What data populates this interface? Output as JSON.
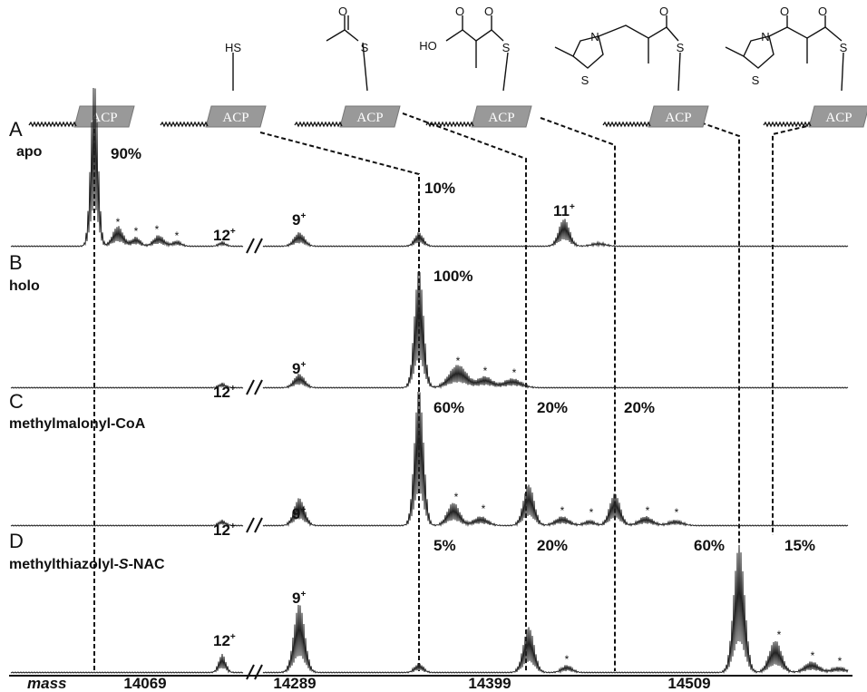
{
  "structures": [
    {
      "label": "ACP",
      "atoms": []
    },
    {
      "label": "ACP",
      "atoms": [
        "HS"
      ]
    },
    {
      "label": "ACP",
      "atoms": [
        "O",
        "S"
      ]
    },
    {
      "label": "ACP",
      "atoms": [
        "HO",
        "O",
        "O",
        "S"
      ]
    },
    {
      "label": "ACP",
      "atoms": [
        "N",
        "S",
        "O",
        "S"
      ]
    },
    {
      "label": "ACP",
      "atoms": [
        "N",
        "S",
        "O",
        "O",
        "S"
      ]
    }
  ],
  "panels": [
    {
      "letter": "A",
      "name": [
        "apo"
      ],
      "percentages": [
        "90%",
        "10%"
      ],
      "charges": [
        {
          "number": "12",
          "sign": "+"
        },
        {
          "number": "9",
          "sign": "+"
        },
        {
          "number": "11",
          "sign": "+"
        }
      ],
      "asterisks": [
        "*",
        "*",
        "*",
        "*"
      ]
    },
    {
      "letter": "B",
      "name": [
        "holo"
      ],
      "percentages": [
        "100%"
      ],
      "charges": [
        {
          "number": "12",
          "sign": "+"
        },
        {
          "number": "9",
          "sign": "+"
        }
      ],
      "asterisks": [
        "*",
        "*",
        "*"
      ]
    },
    {
      "letter": "C",
      "name": [
        "methylmalonyl-CoA"
      ],
      "percentages": [
        "60%",
        "20%",
        "20%"
      ],
      "charges": [
        {
          "number": "12",
          "sign": "+"
        },
        {
          "number": "9",
          "sign": "+"
        }
      ],
      "asterisks": [
        "*",
        "*",
        "*",
        "*",
        "*",
        "*"
      ]
    },
    {
      "letter": "D",
      "name": [
        "methylthiazolyl-",
        "S",
        "-NAC"
      ],
      "percentages": [
        "5%",
        "20%",
        "60%",
        "15%"
      ],
      "charges": [
        {
          "number": "12",
          "sign": "+"
        },
        {
          "number": "9",
          "sign": "+"
        }
      ],
      "asterisks": [
        "*",
        "*",
        "*",
        "*"
      ]
    }
  ],
  "axis": {
    "label": "mass",
    "ticks": [
      "14069",
      "14289",
      "14399",
      "14509"
    ]
  }
}
